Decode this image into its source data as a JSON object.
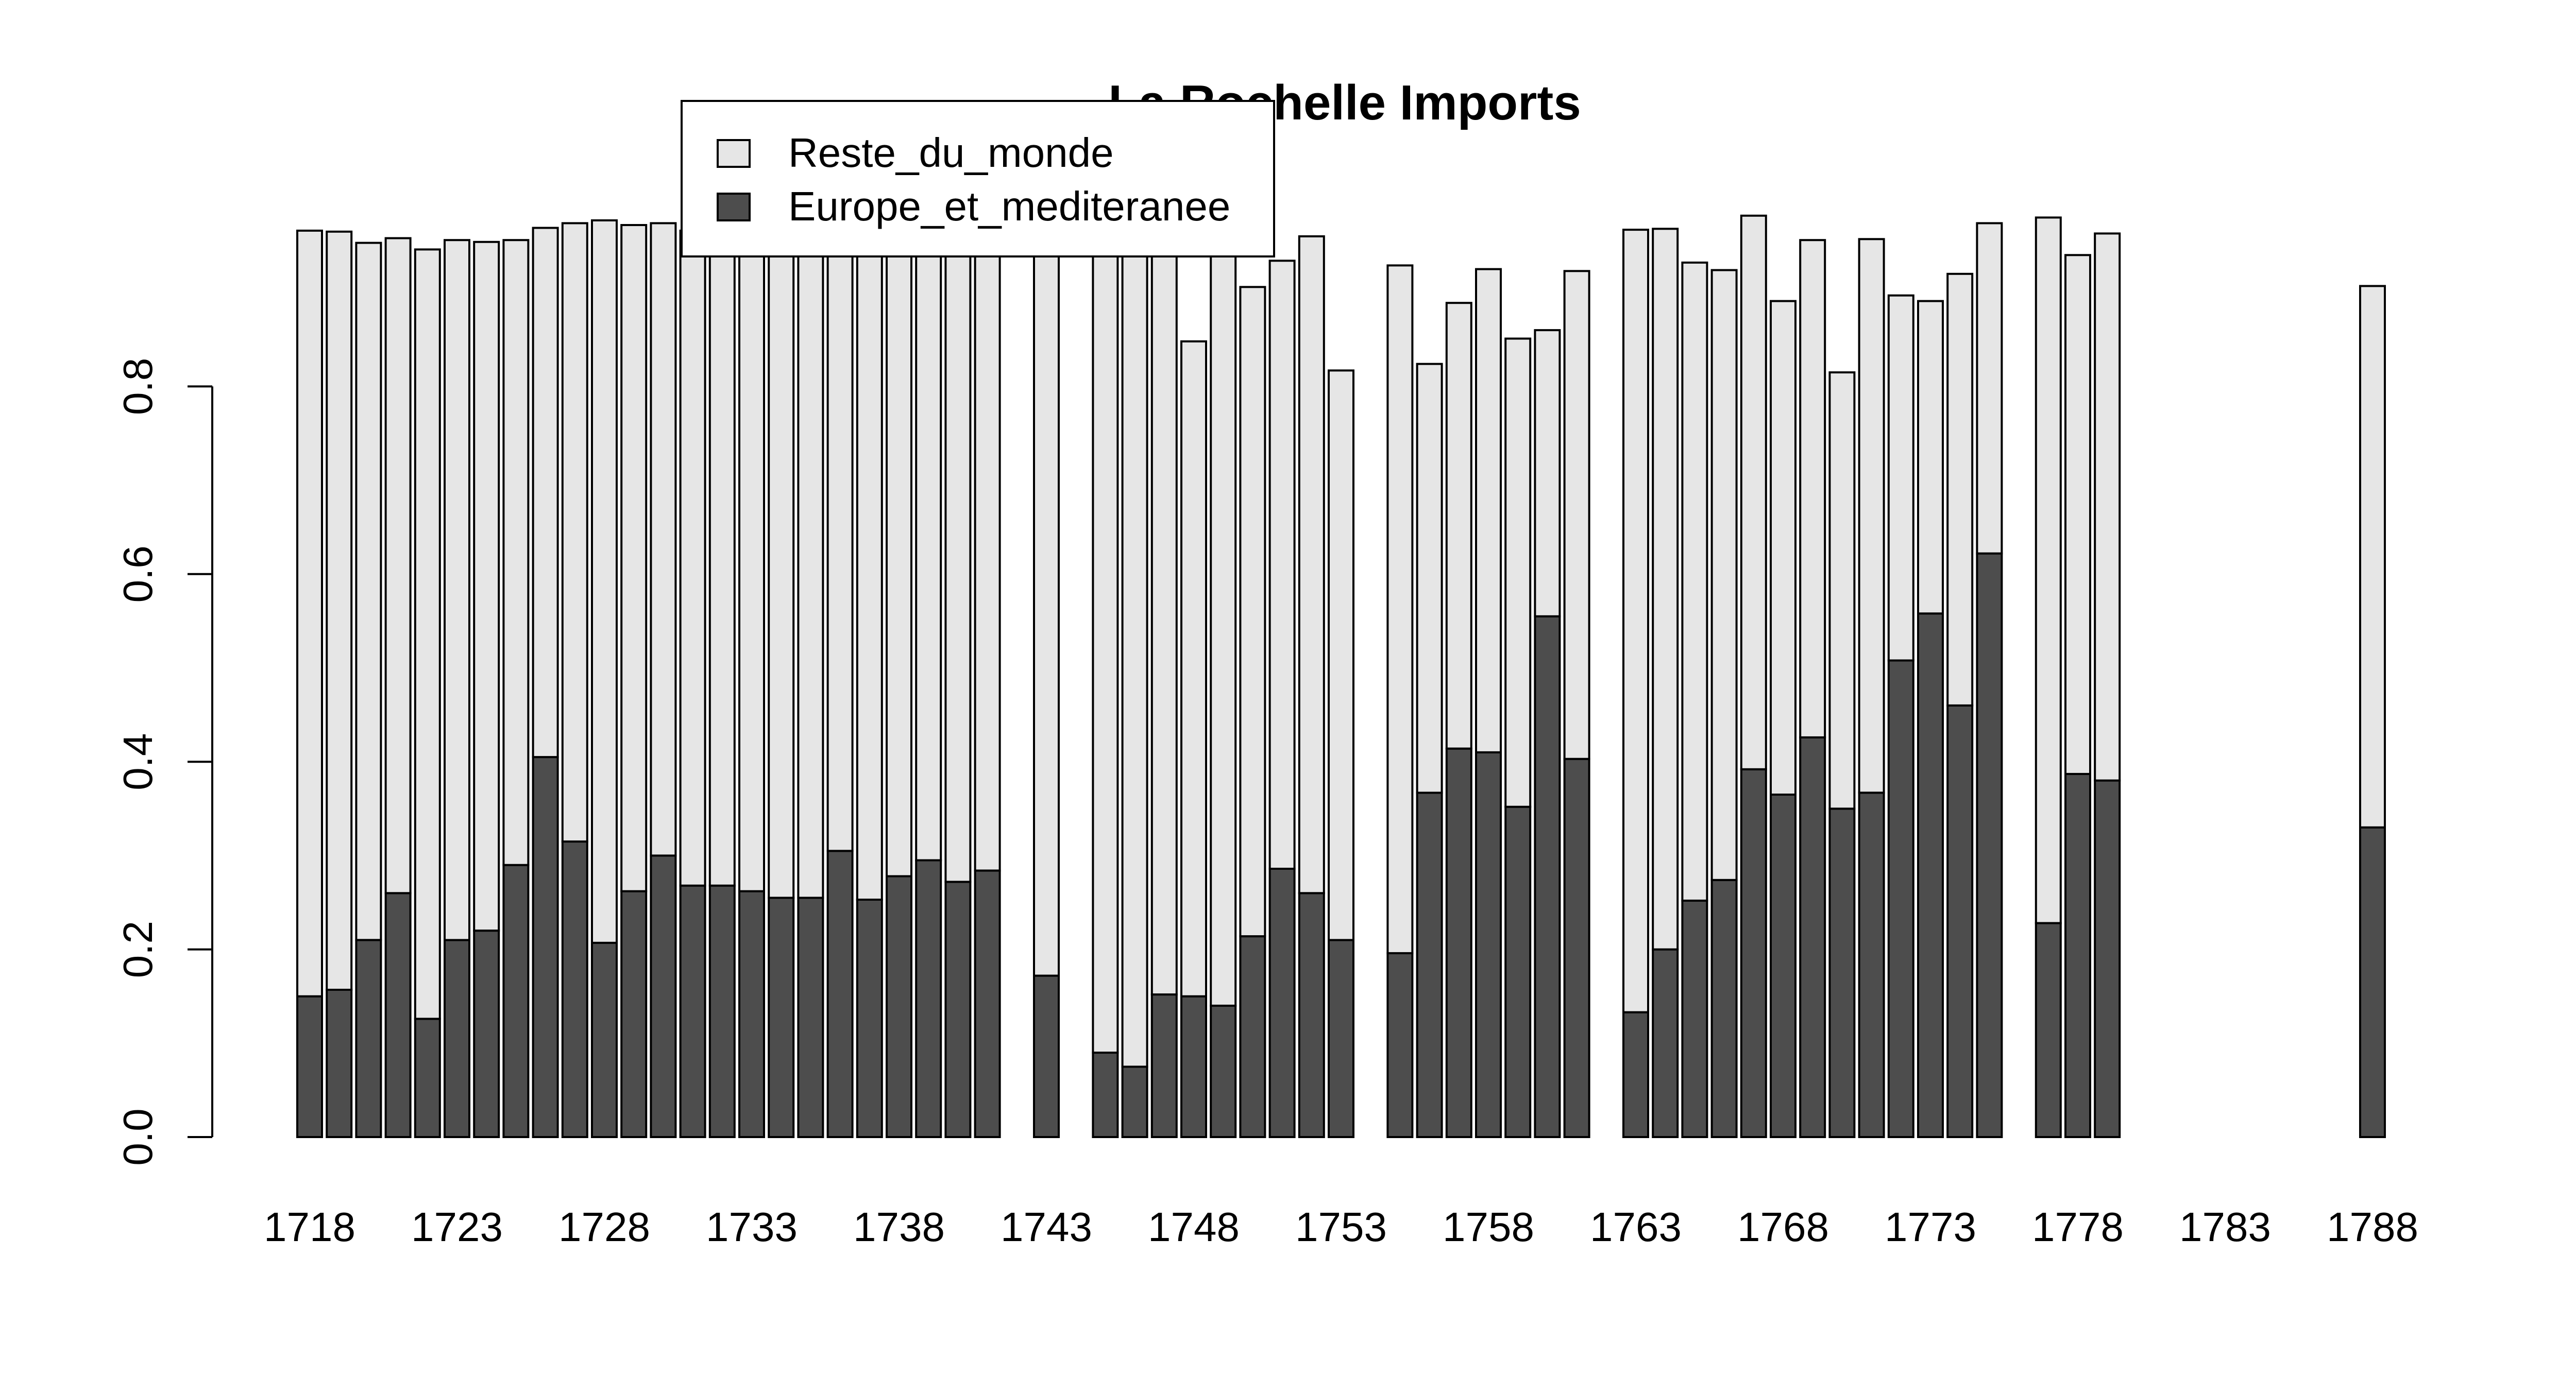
{
  "chart_data": {
    "type": "bar",
    "stacked": true,
    "title": "La Rochelle Imports",
    "xlabel": "",
    "ylabel": "",
    "ylim": [
      0,
      1
    ],
    "y_ticks": [
      "0.0",
      "0.2",
      "0.4",
      "0.6",
      "0.8"
    ],
    "x_tick_labels": [
      "1718",
      "1723",
      "1728",
      "1733",
      "1738",
      "1743",
      "1748",
      "1753",
      "1758",
      "1763",
      "1768",
      "1773",
      "1778",
      "1783",
      "1788"
    ],
    "grid": false,
    "legend_position": "top-center",
    "colors": {
      "Reste_du_monde": "#e6e6e6",
      "Europe_et_mediteranee": "#4d4d4d",
      "outline": "#000000"
    },
    "years": [
      1718,
      1719,
      1720,
      1721,
      1722,
      1723,
      1724,
      1725,
      1726,
      1727,
      1728,
      1729,
      1730,
      1731,
      1732,
      1733,
      1734,
      1735,
      1736,
      1737,
      1738,
      1739,
      1740,
      1741,
      1742,
      1743,
      1744,
      1745,
      1746,
      1747,
      1748,
      1749,
      1750,
      1751,
      1752,
      1753,
      1754,
      1755,
      1756,
      1757,
      1758,
      1759,
      1760,
      1761,
      1762,
      1763,
      1764,
      1765,
      1766,
      1767,
      1768,
      1769,
      1770,
      1771,
      1772,
      1773,
      1774,
      1775,
      1776,
      1777,
      1778,
      1779,
      1780,
      1781,
      1782,
      1783,
      1784,
      1785,
      1786,
      1787,
      1788
    ],
    "series": [
      {
        "name": "Europe_et_mediteranee",
        "values": [
          0.15,
          0.157,
          0.21,
          0.26,
          0.126,
          0.21,
          0.22,
          0.29,
          0.405,
          0.315,
          0.207,
          0.262,
          0.3,
          0.268,
          0.268,
          0.262,
          0.255,
          0.255,
          0.305,
          0.253,
          0.278,
          0.295,
          0.272,
          0.284,
          null,
          0.172,
          null,
          0.09,
          0.075,
          0.152,
          0.15,
          0.14,
          0.214,
          0.286,
          0.26,
          0.21,
          null,
          0.196,
          0.367,
          0.414,
          0.41,
          0.352,
          0.555,
          0.403,
          null,
          0.133,
          0.2,
          0.252,
          0.274,
          0.392,
          0.365,
          0.426,
          0.35,
          0.367,
          0.508,
          0.558,
          0.46,
          0.622,
          null,
          0.228,
          0.387,
          0.38,
          null,
          null,
          null,
          null,
          null,
          null,
          null,
          null,
          0.33
        ]
      },
      {
        "name": "Reste_du_monde",
        "values": [
          0.816,
          0.808,
          0.743,
          0.698,
          0.82,
          0.746,
          0.734,
          0.666,
          0.564,
          0.659,
          0.77,
          0.71,
          0.674,
          0.698,
          0.704,
          0.714,
          0.714,
          0.714,
          0.664,
          0.714,
          0.694,
          0.676,
          0.7,
          0.684,
          null,
          0.792,
          null,
          0.866,
          0.88,
          0.803,
          0.698,
          0.814,
          0.692,
          0.648,
          0.7,
          0.607,
          null,
          0.733,
          0.457,
          0.475,
          0.515,
          0.499,
          0.305,
          0.52,
          null,
          0.834,
          0.768,
          0.68,
          0.65,
          0.59,
          0.526,
          0.53,
          0.465,
          0.59,
          0.389,
          0.333,
          0.46,
          0.352,
          null,
          0.752,
          0.553,
          0.583,
          null,
          null,
          null,
          null,
          null,
          null,
          null,
          null,
          0.577
        ]
      }
    ]
  }
}
